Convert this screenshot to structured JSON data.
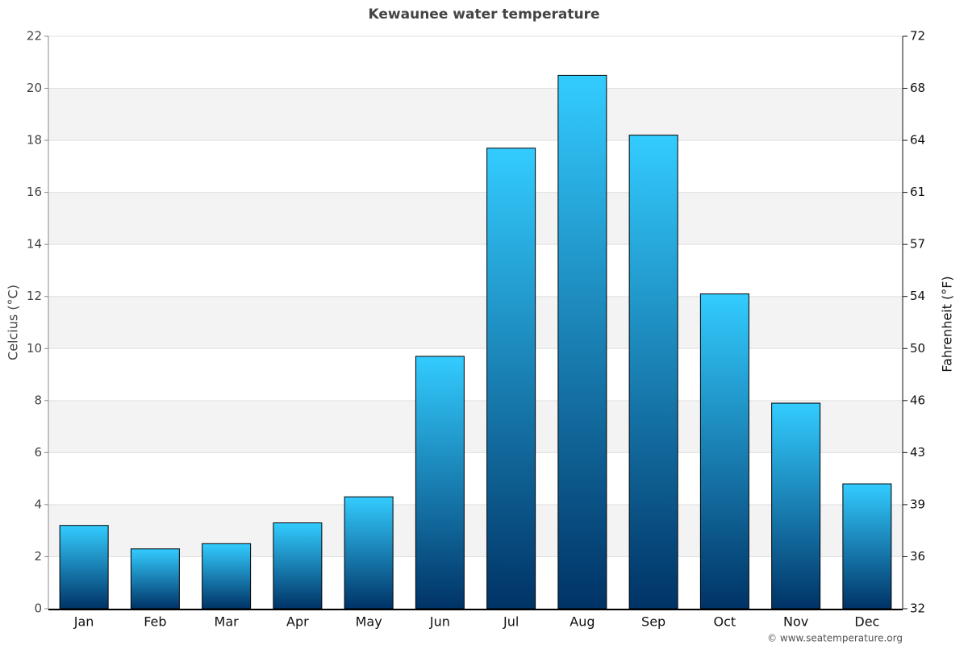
{
  "chart_data": {
    "type": "bar",
    "title": "Kewaunee water temperature",
    "y_label": "Celcius (°C)",
    "y2_label": "Fahrenheit (°F)",
    "credit": "© www.seatemperature.org",
    "categories": [
      "Jan",
      "Feb",
      "Mar",
      "Apr",
      "May",
      "Jun",
      "Jul",
      "Aug",
      "Sep",
      "Oct",
      "Nov",
      "Dec"
    ],
    "values": [
      3.2,
      2.3,
      2.5,
      3.3,
      4.3,
      9.7,
      17.7,
      20.5,
      18.2,
      12.1,
      7.9,
      4.8
    ],
    "color": [
      "#33ccff",
      "#003366"
    ],
    "ylim": [
      0,
      22
    ],
    "yticks": [
      0,
      2,
      4,
      6,
      8,
      10,
      12,
      14,
      16,
      18,
      20,
      22
    ],
    "y2lim": [
      32,
      71.6
    ],
    "y2ticks": [
      32,
      {
        "value": 35.6,
        "label": "36"
      },
      {
        "value": 39.2,
        "label": "39"
      },
      {
        "value": 42.8,
        "label": "43"
      },
      {
        "value": 46.4,
        "label": "46"
      },
      50,
      {
        "value": 53.6,
        "label": "54"
      },
      {
        "value": 57.2,
        "label": "57"
      },
      {
        "value": 60.8,
        "label": "61"
      },
      {
        "value": 64.4,
        "label": "64"
      },
      68,
      {
        "value": 71.6,
        "label": "72"
      }
    ],
    "grid": true
  }
}
